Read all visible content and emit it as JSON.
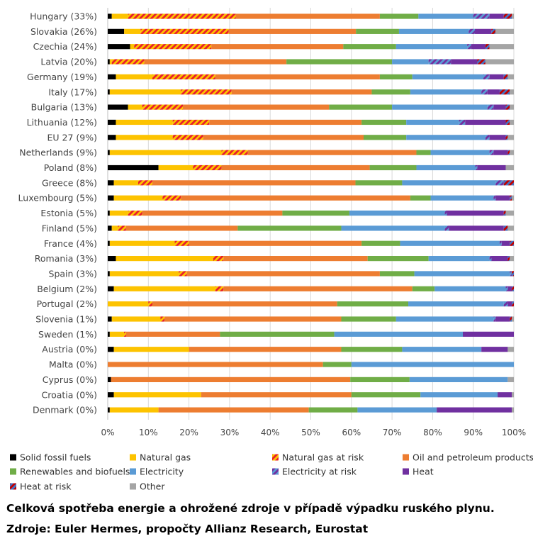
{
  "chart_data": {
    "type": "bar",
    "orientation": "horizontal",
    "stacked": true,
    "xlim": [
      0,
      100
    ],
    "x_ticks": [
      "0%",
      "10%",
      "20%",
      "30%",
      "40%",
      "50%",
      "60%",
      "70%",
      "80%",
      "90%",
      "100%"
    ],
    "grid": true,
    "legend_position": "bottom",
    "categories": [
      "Hungary (33%)",
      "Slovakia (26%)",
      "Czechia (24%)",
      "Latvia (20%)",
      "Germany (19%)",
      "Italy (17%)",
      "Bulgaria (13%)",
      "Lithuania (12%)",
      "EU 27 (9%)",
      "Netherlands (9%)",
      "Poland (8%)",
      "Greece (8%)",
      "Luxembourg (5%)",
      "Estonia (5%)",
      "Finland (5%)",
      "France (4%)",
      "Romania (3%)",
      "Spain (3%)",
      "Belgium (2%)",
      "Portugal (2%)",
      "Slovenia (1%)",
      "Sweden (1%)",
      "Austria (0%)",
      "Malta (0%)",
      "Cyprus (0%)",
      "Croatia (0%)",
      "Denmark (0%)"
    ],
    "series": [
      {
        "name": "Solid fossil fuels",
        "color": "#000000",
        "pattern": "solid",
        "values": [
          1,
          4,
          5.5,
          0.5,
          2,
          0.5,
          5,
          2,
          2,
          0.5,
          12.5,
          1.5,
          1.5,
          0.5,
          1,
          0.5,
          2,
          0.5,
          1.5,
          0,
          1,
          0.5,
          1.5,
          0,
          0.8,
          1.5,
          0.5
        ]
      },
      {
        "name": "Natural gas",
        "color": "#fdc300",
        "pattern": "solid",
        "values": [
          4,
          4,
          1,
          0.5,
          9,
          17.5,
          3.5,
          14,
          14,
          27.5,
          8.5,
          6,
          12,
          4.5,
          1.5,
          16,
          24,
          17,
          25,
          10,
          12,
          3.5,
          18.5,
          0,
          0,
          21.5,
          12
        ]
      },
      {
        "name": "Natural gas at risk",
        "color": "#fdc300",
        "pattern": "hatch-red",
        "values": [
          26.5,
          21.5,
          19,
          8,
          15.5,
          12.5,
          10,
          9,
          7.5,
          6.5,
          7,
          3.5,
          4.5,
          3.5,
          2,
          3.5,
          2.5,
          2,
          2,
          1,
          1,
          0.5,
          0,
          0,
          0,
          0,
          0
        ]
      },
      {
        "name": "Oil and petroleum products",
        "color": "#ed7d31",
        "pattern": "solid",
        "values": [
          35.5,
          31,
          32.5,
          35,
          40.5,
          34.5,
          36,
          37.5,
          39.5,
          41.5,
          36.5,
          50,
          56.5,
          34.5,
          27.5,
          42.5,
          35.5,
          47.5,
          46.5,
          45.5,
          43.5,
          23,
          37.5,
          53,
          58.5,
          37,
          37
        ]
      },
      {
        "name": "Renewables and biofuels",
        "color": "#70ad47",
        "pattern": "solid",
        "values": [
          9.5,
          10.5,
          13,
          26,
          8,
          9.5,
          15.5,
          11,
          10.5,
          3.5,
          11.5,
          11.5,
          5,
          16.5,
          25.5,
          9.5,
          15,
          8.5,
          5.5,
          17.5,
          13.5,
          28,
          15,
          7,
          14.5,
          17,
          12
        ]
      },
      {
        "name": "Electricity",
        "color": "#5b9bd5",
        "pattern": "solid",
        "values": [
          13.5,
          17,
          17.5,
          9,
          17.5,
          17.5,
          23.5,
          13,
          19.5,
          14.5,
          14.5,
          23,
          15.5,
          23.5,
          25.5,
          24.5,
          15,
          23.5,
          17.5,
          23.5,
          24,
          31.5,
          19.5,
          40,
          24,
          19,
          19.5
        ]
      },
      {
        "name": "Electricity at risk",
        "color": "#5b9bd5",
        "pattern": "hatch-purple",
        "values": [
          4,
          1.5,
          1,
          5.5,
          1.5,
          1.5,
          1.5,
          1.5,
          1,
          1,
          0.5,
          2,
          0.5,
          0.5,
          1,
          0.5,
          0.5,
          0.5,
          0.5,
          1,
          0.5,
          0,
          0,
          0,
          0,
          0,
          0
        ]
      },
      {
        "name": "Heat",
        "color": "#7030a0",
        "pattern": "solid",
        "values": [
          3.5,
          4,
          3.5,
          6.5,
          3.5,
          3,
          3,
          10,
          4,
          3.5,
          7,
          0,
          3.5,
          14,
          13.5,
          2,
          4,
          0,
          1,
          1,
          3.5,
          12.5,
          6.5,
          0,
          0,
          3.5,
          18.5
        ]
      },
      {
        "name": "Heat at risk",
        "color": "#c00000",
        "pattern": "hatch-blue",
        "values": [
          2,
          1,
          1,
          2,
          1,
          2.5,
          1,
          1,
          0.5,
          0.5,
          0,
          2.5,
          0.5,
          0.5,
          1,
          1,
          0.5,
          0.5,
          0.5,
          0.5,
          0.5,
          0,
          0,
          0,
          0,
          0,
          0
        ]
      },
      {
        "name": "Other",
        "color": "#a5a5a5",
        "pattern": "solid",
        "values": [
          0.5,
          4.5,
          6,
          7,
          1.5,
          1,
          1,
          1,
          1.5,
          1,
          2,
          0,
          0.5,
          2,
          1.5,
          0,
          1,
          0,
          0,
          0,
          0.5,
          0,
          1.5,
          0,
          1.5,
          0.5,
          0.5
        ]
      }
    ]
  },
  "caption": {
    "title": "Celková spotřeba energie a ohrožené zdroje v případě výpadku ruského plynu.",
    "source": "Zdroje: Euler Hermes, propočty Allianz Research, Eurostat"
  }
}
